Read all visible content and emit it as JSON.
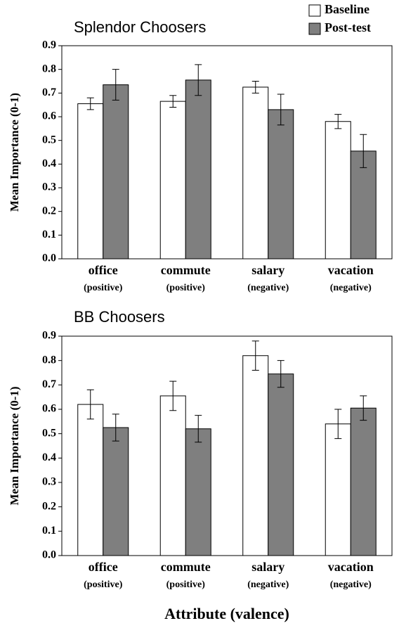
{
  "chart_data": [
    {
      "type": "bar",
      "title": "Splendor Choosers",
      "y_label": "Mean Importance (0-1)",
      "categories": [
        "office",
        "commute",
        "salary",
        "vacation"
      ],
      "category_sublabels": [
        "(positive)",
        "(positive)",
        "(negative)",
        "(negative)"
      ],
      "series": [
        {
          "name": "Baseline",
          "color": "#ffffff",
          "values": [
            0.655,
            0.665,
            0.725,
            0.58
          ],
          "errors": [
            0.025,
            0.025,
            0.025,
            0.03
          ]
        },
        {
          "name": "Post-test",
          "color": "#7f7f7f",
          "values": [
            0.735,
            0.755,
            0.63,
            0.455
          ],
          "errors": [
            0.065,
            0.065,
            0.065,
            0.07
          ]
        }
      ],
      "ylim": [
        0,
        0.9
      ],
      "yticks": [
        {
          "value": 0,
          "label": "0.0"
        },
        0.1,
        0.2,
        0.3,
        0.4,
        0.5,
        0.6,
        0.7,
        0.8,
        0.9
      ],
      "legend": "top-right"
    },
    {
      "type": "bar",
      "title": "BB Choosers",
      "y_label": "Mean Importance (0-1)",
      "x_label": "Attribute (valence)",
      "categories": [
        "office",
        "commute",
        "salary",
        "vacation"
      ],
      "category_sublabels": [
        "(positive)",
        "(positive)",
        "(negative)",
        "(negative)"
      ],
      "series": [
        {
          "color": "#ffffff",
          "values": [
            0.62,
            0.655,
            0.82,
            0.54
          ],
          "errors": [
            0.06,
            0.06,
            0.06,
            0.06
          ]
        },
        {
          "color": "#7f7f7f",
          "values": [
            0.525,
            0.52,
            0.745,
            0.605
          ],
          "errors": [
            0.055,
            0.055,
            0.055,
            0.05
          ]
        }
      ],
      "ylim": [
        0,
        0.9
      ],
      "yticks": [
        {
          "value": 0,
          "label": "0.0"
        },
        0.1,
        0.2,
        0.3,
        0.4,
        0.5,
        0.6,
        0.7,
        0.8,
        0.9
      ]
    }
  ]
}
